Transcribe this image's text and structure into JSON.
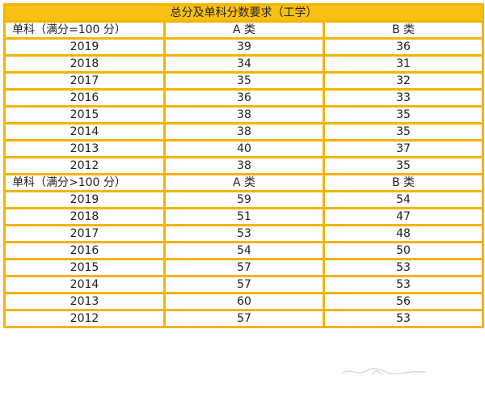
{
  "table": {
    "title": "总分及单科分数要求（工学）",
    "sections": [
      {
        "header": [
          "单科（满分=100 分）",
          "A 类",
          "B 类"
        ],
        "rows": [
          [
            "2019",
            "39",
            "36"
          ],
          [
            "2018",
            "34",
            "31"
          ],
          [
            "2017",
            "35",
            "32"
          ],
          [
            "2016",
            "36",
            "33"
          ],
          [
            "2015",
            "38",
            "35"
          ],
          [
            "2014",
            "38",
            "35"
          ],
          [
            "2013",
            "40",
            "37"
          ],
          [
            "2012",
            "38",
            "35"
          ]
        ]
      },
      {
        "header": [
          "单科（满分>100 分）",
          "A 类",
          "B 类"
        ],
        "rows": [
          [
            "2019",
            "59",
            "54"
          ],
          [
            "2018",
            "51",
            "47"
          ],
          [
            "2017",
            "53",
            "48"
          ],
          [
            "2016",
            "54",
            "50"
          ],
          [
            "2015",
            "57",
            "53"
          ],
          [
            "2014",
            "57",
            "53"
          ],
          [
            "2013",
            "60",
            "56"
          ],
          [
            "2012",
            "57",
            "53"
          ]
        ]
      }
    ],
    "colors": {
      "border": "#f4b400",
      "title_bg": "#f9c014",
      "text": "#222222"
    }
  }
}
